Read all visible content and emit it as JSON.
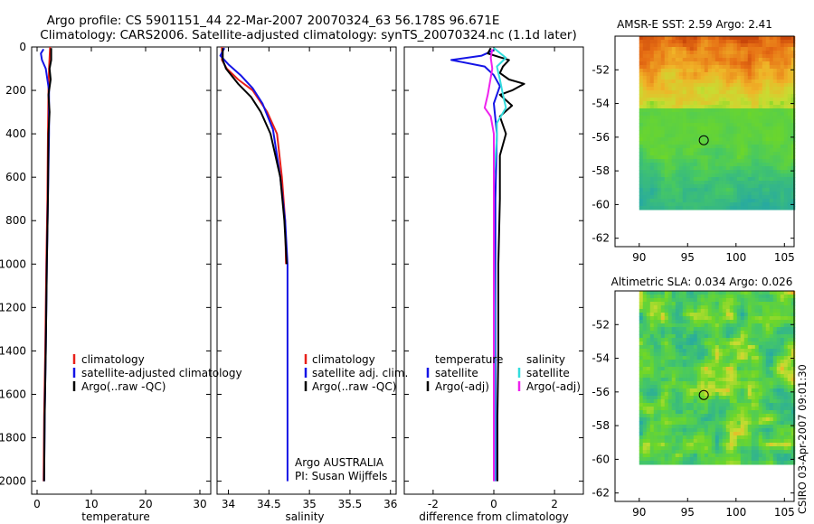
{
  "header": {
    "title_line1": "Argo profile: CS 5901151_44 22-Mar-2007 20070324_63 56.178S 96.671E",
    "title_line2": "Climatology: CARS2006. Satellite-adjusted climatology: synTS_20070324.nc (1.1d later)"
  },
  "colors": {
    "climatology": "#e8201a",
    "satellite": "#1414e6",
    "argo": "#000000",
    "argo_adj": "#ee22ee",
    "sat_salinity": "#33dddd"
  },
  "chart_data": [
    {
      "id": "temperature",
      "type": "line",
      "xlabel": "temperature",
      "ylabel": "",
      "xlim": [
        -1,
        32
      ],
      "ylim": [
        2060,
        0
      ],
      "invert_y": true,
      "xticks": [
        "0",
        "10",
        "20",
        "30"
      ],
      "xtick_values": [
        0,
        10,
        20,
        30
      ],
      "yticks": [
        "0",
        "200",
        "400",
        "600",
        "800",
        "1000",
        "1200",
        "1400",
        "1600",
        "1800",
        "2000"
      ],
      "ytick_values": [
        0,
        200,
        400,
        600,
        800,
        1000,
        1200,
        1400,
        1600,
        1800,
        2000
      ],
      "legend": {
        "placement": "lower-right",
        "entries": [
          "climatology",
          "satellite-adjusted climatology",
          "Argo(..raw -QC)"
        ]
      },
      "series": [
        {
          "name": "climatology",
          "color": "#e8201a",
          "points": [
            [
              2.4,
              0
            ],
            [
              2.3,
              50
            ],
            [
              2.2,
              100
            ],
            [
              2.1,
              200
            ],
            [
              2.0,
              400
            ],
            [
              1.9,
              700
            ],
            [
              1.7,
              1000
            ],
            [
              1.5,
              1400
            ],
            [
              1.3,
              1700
            ],
            [
              1.2,
              2000
            ]
          ]
        },
        {
          "name": "satellite-adjusted climatology",
          "color": "#1414e6",
          "points": [
            [
              1.2,
              10
            ],
            [
              0.7,
              30
            ],
            [
              0.9,
              60
            ],
            [
              1.6,
              100
            ],
            [
              2.2,
              200
            ],
            [
              2.2,
              400
            ],
            [
              2.0,
              700
            ],
            [
              1.8,
              1000
            ],
            [
              1.6,
              1400
            ],
            [
              1.4,
              1700
            ],
            [
              1.3,
              2000
            ]
          ]
        },
        {
          "name": "Argo(..raw -QC)",
          "color": "#000000",
          "points": [
            [
              2.6,
              5
            ],
            [
              2.6,
              60
            ],
            [
              2.3,
              100
            ],
            [
              2.5,
              150
            ],
            [
              2.1,
              220
            ],
            [
              2.3,
              300
            ],
            [
              2.1,
              400
            ],
            [
              2.0,
              700
            ],
            [
              1.8,
              1000
            ],
            [
              1.6,
              1400
            ],
            [
              1.4,
              1700
            ],
            [
              1.3,
              2000
            ]
          ]
        }
      ]
    },
    {
      "id": "salinity",
      "type": "line",
      "xlabel": "salinity",
      "ylabel": "",
      "xlim": [
        33.86,
        36.07
      ],
      "ylim": [
        2060,
        0
      ],
      "invert_y": true,
      "xticks": [
        "34",
        "34.5",
        "35",
        "35.5",
        "36"
      ],
      "xtick_values": [
        34,
        34.5,
        35,
        35.5,
        36
      ],
      "legend": {
        "placement": "lower-right",
        "entries": [
          "climatology",
          "satellite adj. clim.",
          "Argo(..raw -QC)"
        ]
      },
      "annotation_line1": "Argo AUSTRALIA",
      "annotation_line2": "PI: Susan Wijffels",
      "series": [
        {
          "name": "climatology",
          "color": "#e8201a",
          "points": [
            [
              33.92,
              0
            ],
            [
              33.92,
              60
            ],
            [
              33.98,
              100
            ],
            [
              34.12,
              150
            ],
            [
              34.3,
              200
            ],
            [
              34.48,
              300
            ],
            [
              34.6,
              400
            ],
            [
              34.66,
              600
            ],
            [
              34.7,
              800
            ],
            [
              34.71,
              1000
            ]
          ]
        },
        {
          "name": "satellite adj. clim.",
          "color": "#1414e6",
          "points": [
            [
              33.95,
              5
            ],
            [
              33.9,
              40
            ],
            [
              34.0,
              80
            ],
            [
              34.15,
              130
            ],
            [
              34.3,
              190
            ],
            [
              34.42,
              260
            ],
            [
              34.55,
              380
            ],
            [
              34.64,
              600
            ],
            [
              34.7,
              800
            ],
            [
              34.73,
              1000
            ],
            [
              34.73,
              1400
            ],
            [
              34.73,
              1700
            ],
            [
              34.73,
              2000
            ]
          ]
        },
        {
          "name": "Argo(..raw -QC)",
          "color": "#000000",
          "points": [
            [
              33.93,
              5
            ],
            [
              33.93,
              60
            ],
            [
              33.97,
              100
            ],
            [
              34.12,
              170
            ],
            [
              34.28,
              230
            ],
            [
              34.4,
              300
            ],
            [
              34.52,
              400
            ],
            [
              34.64,
              600
            ],
            [
              34.69,
              800
            ],
            [
              34.72,
              1000
            ]
          ]
        }
      ]
    },
    {
      "id": "difference",
      "type": "line",
      "xlabel": "difference from climatology",
      "ylabel": "",
      "xlim": [
        -2.95,
        2.95
      ],
      "ylim": [
        2060,
        0
      ],
      "invert_y": true,
      "xticks": [
        "-2",
        "0",
        "2"
      ],
      "xtick_values": [
        -2,
        0,
        2
      ],
      "legend": {
        "placement": "lower-center",
        "temperature_header": "temperature",
        "salinity_header": "salinity",
        "entries": [
          "satellite",
          "Argo(-adj)",
          "satellite",
          "Argo(-adj)"
        ]
      },
      "series": [
        {
          "name": "temperature satellite",
          "color": "#1414e6",
          "points": [
            [
              0.0,
              15
            ],
            [
              -0.4,
              40
            ],
            [
              -1.4,
              60
            ],
            [
              -0.3,
              90
            ],
            [
              0.0,
              130
            ],
            [
              0.2,
              180
            ],
            [
              0.0,
              260
            ],
            [
              0.1,
              400
            ],
            [
              0.05,
              700
            ],
            [
              0.05,
              1000
            ],
            [
              0.05,
              1400
            ],
            [
              0.05,
              1700
            ],
            [
              0.05,
              2000
            ]
          ]
        },
        {
          "name": "temperature Argo(-adj)",
          "color": "#000000",
          "points": [
            [
              -0.1,
              5
            ],
            [
              -0.2,
              30
            ],
            [
              0.5,
              60
            ],
            [
              0.3,
              90
            ],
            [
              0.2,
              120
            ],
            [
              0.5,
              150
            ],
            [
              1.0,
              170
            ],
            [
              0.6,
              200
            ],
            [
              0.2,
              220
            ],
            [
              0.6,
              270
            ],
            [
              0.2,
              320
            ],
            [
              0.4,
              400
            ],
            [
              0.2,
              500
            ],
            [
              0.2,
              700
            ],
            [
              0.15,
              1000
            ],
            [
              0.15,
              1400
            ],
            [
              0.12,
              1700
            ],
            [
              0.12,
              2000
            ]
          ]
        },
        {
          "name": "salinity satellite",
          "color": "#33dddd",
          "points": [
            [
              0.0,
              5
            ],
            [
              0.4,
              50
            ],
            [
              0.1,
              90
            ],
            [
              0.2,
              150
            ],
            [
              0.3,
              220
            ],
            [
              0.4,
              280
            ],
            [
              0.1,
              350
            ],
            [
              0.1,
              420
            ],
            [
              0.0,
              600
            ],
            [
              0.0,
              900
            ],
            [
              0.02,
              1200
            ],
            [
              0.02,
              1500
            ],
            [
              0.02,
              2000
            ]
          ]
        },
        {
          "name": "salinity Argo(-adj)",
          "color": "#ee22ee",
          "points": [
            [
              -0.05,
              10
            ],
            [
              -0.1,
              50
            ],
            [
              -0.05,
              100
            ],
            [
              -0.2,
              220
            ],
            [
              -0.3,
              280
            ],
            [
              -0.1,
              320
            ],
            [
              0.0,
              400
            ],
            [
              0.0,
              700
            ],
            [
              0.0,
              1000
            ],
            [
              0.0,
              1400
            ],
            [
              0.0,
              1700
            ],
            [
              0.0,
              2000
            ]
          ]
        }
      ]
    },
    {
      "id": "sst_map",
      "type": "heatmap",
      "title": "AMSR-E SST: 2.59 Argo: 2.41",
      "xlim": [
        87.5,
        106
      ],
      "ylim": [
        -62.5,
        -50
      ],
      "xticks": [
        "90",
        "95",
        "100",
        "105"
      ],
      "xtick_values": [
        90,
        95,
        100,
        105
      ],
      "yticks": [
        "-52",
        "-54",
        "-56",
        "-58",
        "-60",
        "-62"
      ],
      "ytick_values": [
        -52,
        -54,
        -56,
        -58,
        -60,
        -62
      ],
      "data_extent": {
        "lon": [
          90,
          106
        ],
        "lat": [
          -60.2,
          -50
        ]
      },
      "marker": {
        "lon": 96.67,
        "lat": -56.18
      }
    },
    {
      "id": "sla_map",
      "type": "heatmap",
      "title": "Altimetric SLA: 0.034 Argo: 0.026",
      "xlim": [
        87.5,
        106
      ],
      "ylim": [
        -62.5,
        -50
      ],
      "xticks": [
        "90",
        "95",
        "100",
        "105"
      ],
      "xtick_values": [
        90,
        95,
        100,
        105
      ],
      "yticks": [
        "-52",
        "-54",
        "-56",
        "-58",
        "-60",
        "-62"
      ],
      "ytick_values": [
        -52,
        -54,
        -56,
        -58,
        -60,
        -62
      ],
      "data_extent": {
        "lon": [
          90,
          106
        ],
        "lat": [
          -60.2,
          -50
        ]
      },
      "marker": {
        "lon": 96.67,
        "lat": -56.18
      }
    }
  ],
  "footer": {
    "stamp": "CSIRO 03-Apr-2007 09:01:30"
  }
}
